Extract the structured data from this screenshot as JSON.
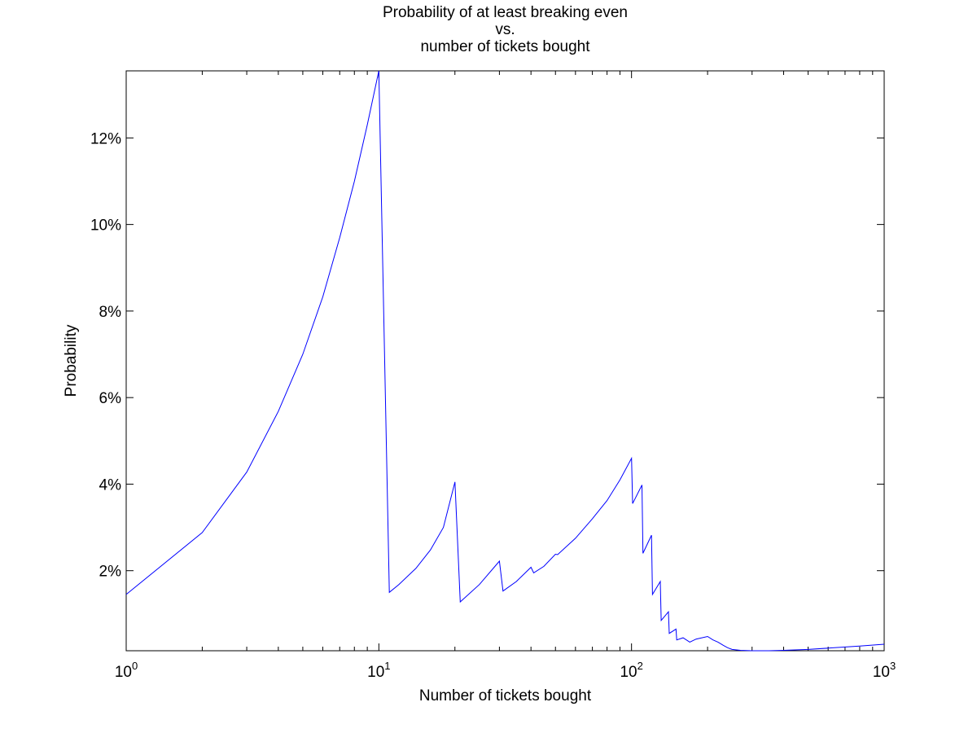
{
  "chart_data": {
    "type": "line",
    "title": [
      "Probability of at least breaking even",
      "vs.",
      "number of tickets bought"
    ],
    "xlabel": "Number of tickets bought",
    "ylabel": "Probability",
    "xscale": "log",
    "xlim": [
      1,
      1000
    ],
    "ylim": [
      0.0015,
      0.1355
    ],
    "x_ticks": [
      {
        "value": 1,
        "base": "10",
        "exp": "0"
      },
      {
        "value": 10,
        "base": "10",
        "exp": "1"
      },
      {
        "value": 100,
        "base": "10",
        "exp": "2"
      },
      {
        "value": 1000,
        "base": "10",
        "exp": "3"
      }
    ],
    "y_ticks": [
      {
        "value": 0.02,
        "label": "2%"
      },
      {
        "value": 0.04,
        "label": "4%"
      },
      {
        "value": 0.06,
        "label": "6%"
      },
      {
        "value": 0.08,
        "label": "8%"
      },
      {
        "value": 0.1,
        "label": "10%"
      },
      {
        "value": 0.12,
        "label": "12%"
      }
    ],
    "grid": false,
    "color": "#0000ff",
    "series": [
      {
        "x": [
          1,
          2,
          3,
          4,
          5,
          6,
          7,
          8,
          9,
          10,
          11,
          12,
          14,
          16,
          18,
          20,
          21,
          25,
          30,
          31,
          35,
          40,
          41,
          45,
          50,
          51,
          60,
          70,
          80,
          90,
          100,
          101,
          110,
          111,
          120,
          121,
          130,
          131,
          140,
          141,
          150,
          151,
          160,
          170,
          180,
          200,
          210,
          220,
          230,
          240,
          250,
          270,
          300,
          350,
          400,
          500,
          600,
          800,
          1000
        ],
        "y": [
          0.0145,
          0.0288,
          0.0428,
          0.0568,
          0.07,
          0.0833,
          0.097,
          0.11,
          0.123,
          0.1355,
          0.015,
          0.0168,
          0.0205,
          0.0248,
          0.03,
          0.0405,
          0.0128,
          0.0168,
          0.0222,
          0.0153,
          0.0175,
          0.0208,
          0.0195,
          0.021,
          0.0238,
          0.0237,
          0.0275,
          0.032,
          0.0362,
          0.041,
          0.046,
          0.0355,
          0.0398,
          0.024,
          0.0282,
          0.0145,
          0.0175,
          0.0085,
          0.0105,
          0.0055,
          0.0065,
          0.004,
          0.0045,
          0.0035,
          0.0042,
          0.0048,
          0.004,
          0.0035,
          0.0028,
          0.0022,
          0.0018,
          0.0016,
          0.0015,
          0.0015,
          0.0016,
          0.0018,
          0.0021,
          0.0026,
          0.003
        ]
      }
    ]
  }
}
